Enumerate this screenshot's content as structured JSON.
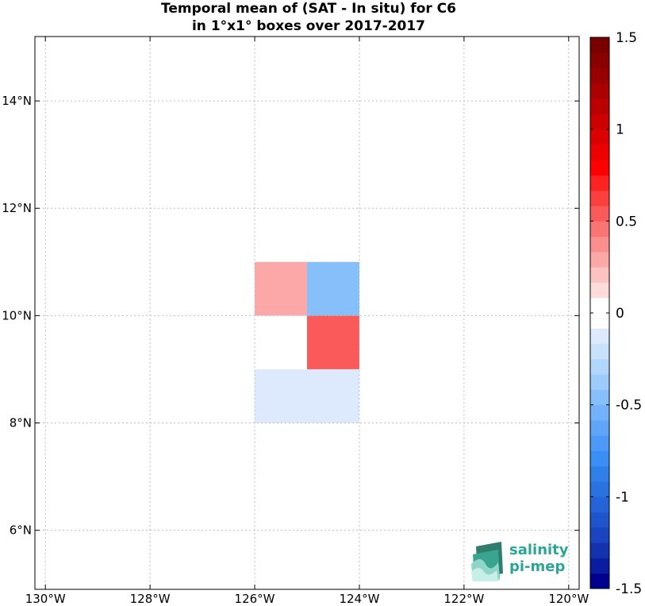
{
  "title": {
    "line1": "Temporal mean of (SAT - In situ) for C6",
    "line2": "in 1°x1° boxes over 2017-2017"
  },
  "chart_data": {
    "type": "heatmap",
    "title": "Temporal mean of (SAT - In situ) for C6 in 1°x1° boxes over 2017-2017",
    "x_range_lon": [
      -130.2,
      -119.8
    ],
    "y_range_lat": [
      4.9,
      15.2
    ],
    "x_ticks": [
      {
        "value": -130,
        "label": "130°W"
      },
      {
        "value": -128,
        "label": "128°W"
      },
      {
        "value": -126,
        "label": "126°W"
      },
      {
        "value": -124,
        "label": "124°W"
      },
      {
        "value": -122,
        "label": "122°W"
      },
      {
        "value": -120,
        "label": "120°W"
      }
    ],
    "y_ticks": [
      {
        "value": 6,
        "label": "6°N"
      },
      {
        "value": 8,
        "label": "8°N"
      },
      {
        "value": 10,
        "label": "10°N"
      },
      {
        "value": 12,
        "label": "12°N"
      },
      {
        "value": 14,
        "label": "14°N"
      }
    ],
    "grid": true,
    "cells": [
      {
        "lon_min": -126,
        "lon_max": -125,
        "lat_min": 10,
        "lat_max": 11,
        "value": 0.25
      },
      {
        "lon_min": -125,
        "lon_max": -124,
        "lat_min": 10,
        "lat_max": 11,
        "value": -0.5
      },
      {
        "lon_min": -125,
        "lon_max": -124,
        "lat_min": 9,
        "lat_max": 10,
        "value": 0.5
      },
      {
        "lon_min": -126,
        "lon_max": -124,
        "lat_min": 8,
        "lat_max": 9,
        "value": -0.1
      }
    ],
    "colorbar": {
      "min": -1.5,
      "max": 1.5,
      "ticks": [
        {
          "value": 1.5,
          "label": "1.5"
        },
        {
          "value": 1,
          "label": "1"
        },
        {
          "value": 0.5,
          "label": "0.5"
        },
        {
          "value": 0,
          "label": "0"
        },
        {
          "value": -0.5,
          "label": "-0.5"
        },
        {
          "value": -1,
          "label": "-1"
        },
        {
          "value": -1.5,
          "label": "-1.5"
        }
      ],
      "colors": [
        "#00008f",
        "#0a1ca0",
        "#1232b0",
        "#1a44c0",
        "#1f55cc",
        "#2464d8",
        "#2a72e2",
        "#2f80ea",
        "#3a8ff6",
        "#4c9af8",
        "#5fa6f9",
        "#73b2fa",
        "#87bffb",
        "#9ccbfc",
        "#b2d7fd",
        "#c8e2fe",
        "#dde9fd",
        "#ffffff",
        "#ffffff",
        "#fedcdc",
        "#fdc2c2",
        "#fca8a8",
        "#fb8e8e",
        "#fa7474",
        "#fa5a5a",
        "#fb3f3f",
        "#fd2323",
        "#ff0000",
        "#ee0000",
        "#dd0000",
        "#cc0000",
        "#bb0000",
        "#aa0000",
        "#990000",
        "#880000",
        "#7a0000"
      ]
    }
  },
  "logo": {
    "line1": "salinity",
    "line2": "pi-mep"
  }
}
